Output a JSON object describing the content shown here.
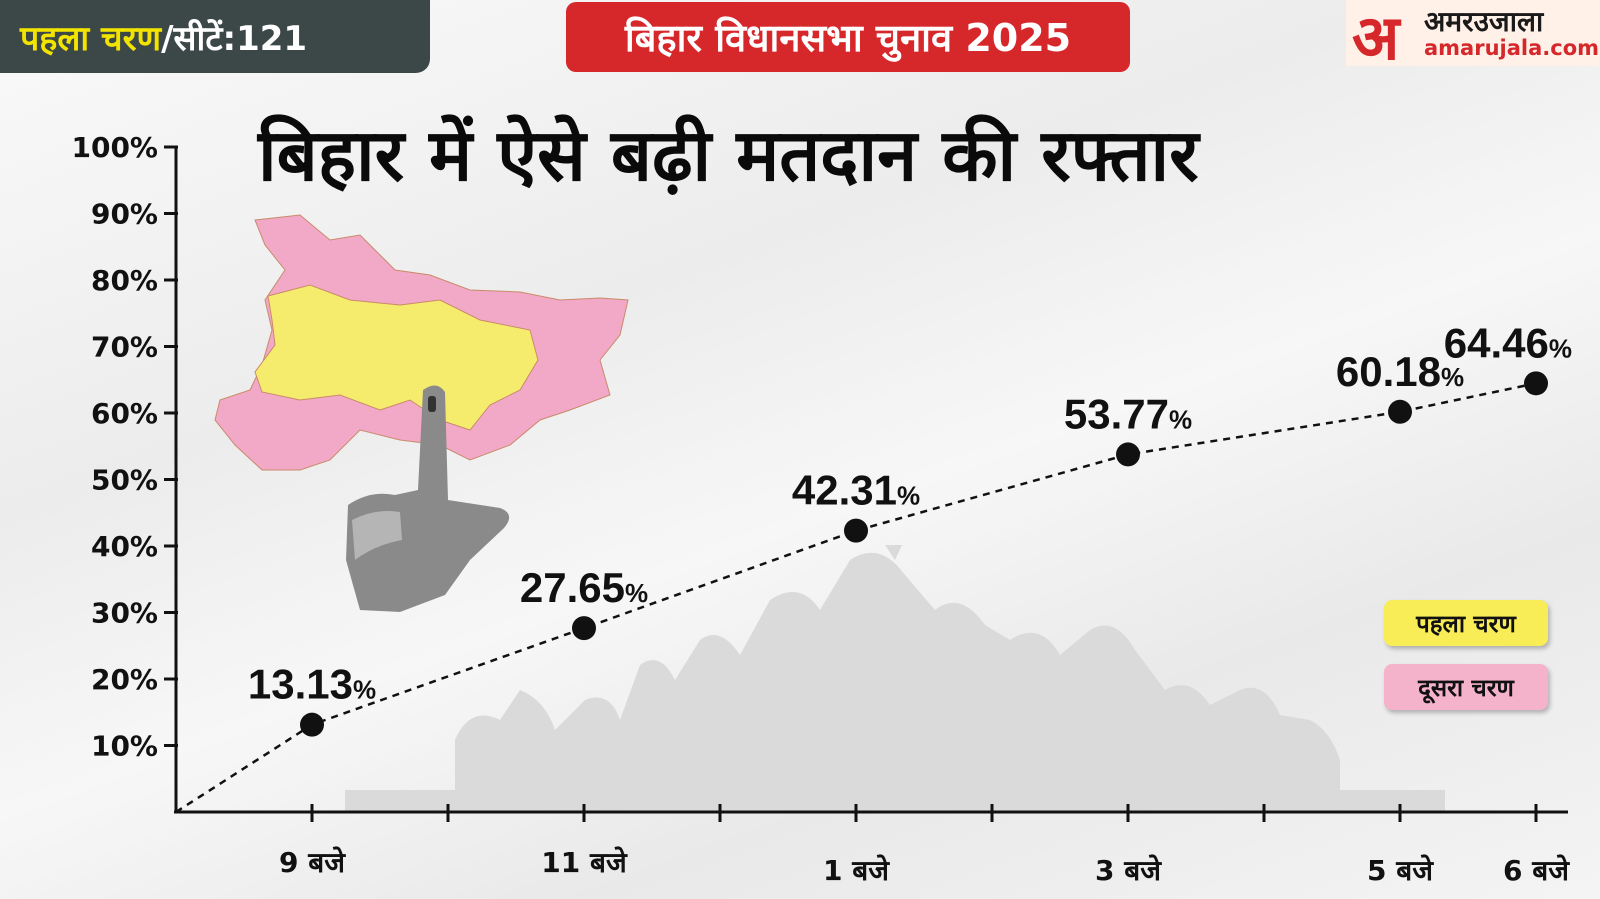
{
  "header": {
    "phase_label": "पहला चरण",
    "seats_label": "/सीटें:121",
    "banner": "बिहार विधानसभा चुनाव 2025"
  },
  "logo": {
    "mark": "अ",
    "name": "अमरउजाला",
    "url": "amarujala.com"
  },
  "colors": {
    "banner_red": "#d6272b",
    "phase_yellow": "#f8ec57",
    "phase_pink": "#f4b2cb",
    "badge_dark": "#3c4848"
  },
  "chart_data": {
    "type": "line",
    "title": "बिहार में ऐसे बढ़ी मतदान की रफ्तार",
    "y_ticks": [
      "10%",
      "20%",
      "30%",
      "40%",
      "50%",
      "60%",
      "70%",
      "80%",
      "90%",
      "100%"
    ],
    "ylim": [
      0,
      100
    ],
    "x_tick_labels": [
      "9 बजे",
      "11 बजे",
      "1 बजे",
      "3 बजे",
      "5 बजे",
      "6 बजे"
    ],
    "x_hours": [
      9,
      11,
      13,
      15,
      17,
      18
    ],
    "values": [
      13.13,
      27.65,
      42.31,
      53.77,
      60.18,
      64.46
    ],
    "value_labels": [
      "13.13",
      "27.65",
      "42.31",
      "53.77",
      "60.18",
      "64.46"
    ],
    "value_suffix": "%",
    "line_style": "dashed",
    "legend": [
      "पहला चरण",
      "दूसरा चरण"
    ],
    "legend_position": "right"
  }
}
